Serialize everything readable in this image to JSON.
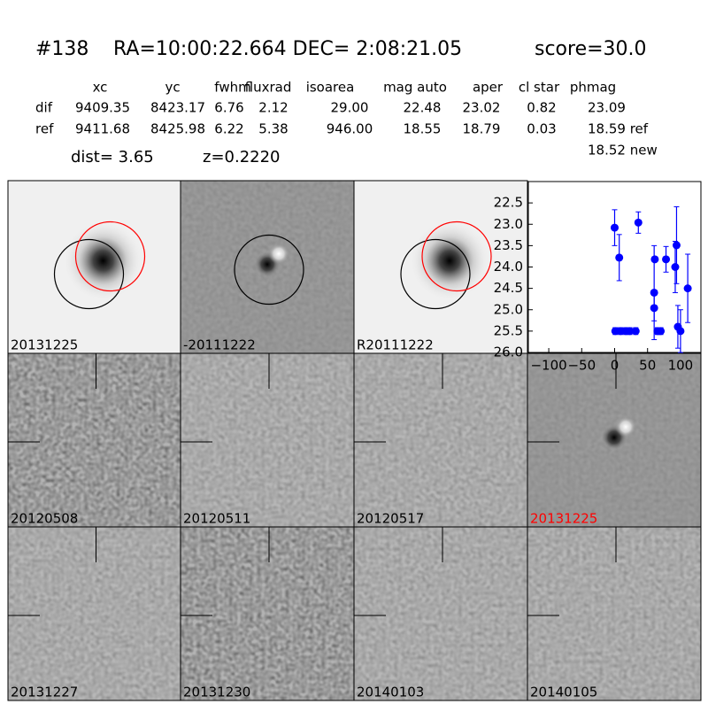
{
  "header": {
    "id": "#138",
    "coords": "RA=10:00:22.664 DEC= 2:08:21.05",
    "score": "score=30.0",
    "dist": "dist=  3.65",
    "z": "z=0.2220"
  },
  "table": {
    "columns": [
      "xc",
      "yc",
      "fwhm",
      "fluxrad",
      "isoarea",
      "mag auto",
      "aper",
      "cl star",
      "phmag"
    ],
    "rows": [
      [
        "dif",
        "9409.35",
        "8423.17",
        "6.76",
        "2.12",
        "29.00",
        "22.48",
        "23.02",
        "0.82",
        "23.09"
      ],
      [
        "ref",
        "9411.68",
        "8425.98",
        "6.22",
        "5.38",
        "946.00",
        "18.55",
        "18.79",
        "0.03",
        "18.59 ref"
      ]
    ],
    "extra": "18.52 new"
  },
  "panels": [
    "20131225",
    "-20111222",
    "R20111222",
    "20120508",
    "20120511",
    "20120517",
    "20131225",
    "20131227",
    "20131230",
    "20140103",
    "20140105"
  ],
  "chart_data": {
    "type": "scatter",
    "xlim": [
      -131,
      131
    ],
    "xticks": [
      {
        "value": -100,
        "label": "−100"
      },
      {
        "value": -50,
        "label": "−50"
      },
      0,
      50,
      100
    ],
    "ylim": [
      26.0,
      22.0
    ],
    "yticks": [
      {
        "value": 22.5,
        "label": "22.5"
      },
      {
        "value": 23.0,
        "label": "23.0"
      },
      {
        "value": 23.5,
        "label": "23.5"
      },
      {
        "value": 24.0,
        "label": "24.0"
      },
      {
        "value": 24.5,
        "label": "24.5"
      },
      {
        "value": 25.0,
        "label": "25.0"
      },
      {
        "value": 25.5,
        "label": "25.5"
      },
      {
        "value": 26.0,
        "label": "26.0"
      }
    ],
    "series": [
      {
        "color": "#0000ff",
        "x": [
          0,
          7,
          36,
          1,
          9,
          17,
          23,
          32,
          61,
          60,
          60,
          65,
          70,
          78,
          94,
          92,
          96,
          100,
          111
        ],
        "values": [
          23.08,
          23.78,
          22.96,
          25.5,
          25.5,
          25.5,
          25.5,
          25.5,
          23.82,
          24.6,
          24.96,
          25.5,
          25.5,
          23.82,
          23.49,
          24.0,
          25.4,
          25.5,
          24.5
        ],
        "errors": [
          0.42,
          0.54,
          0.25,
          0.08,
          0.08,
          0.08,
          0.08,
          0.08,
          0.05,
          1.1,
          0.3,
          0.08,
          0.08,
          0.3,
          0.9,
          0.6,
          0.5,
          0.5,
          0.8
        ]
      }
    ]
  }
}
